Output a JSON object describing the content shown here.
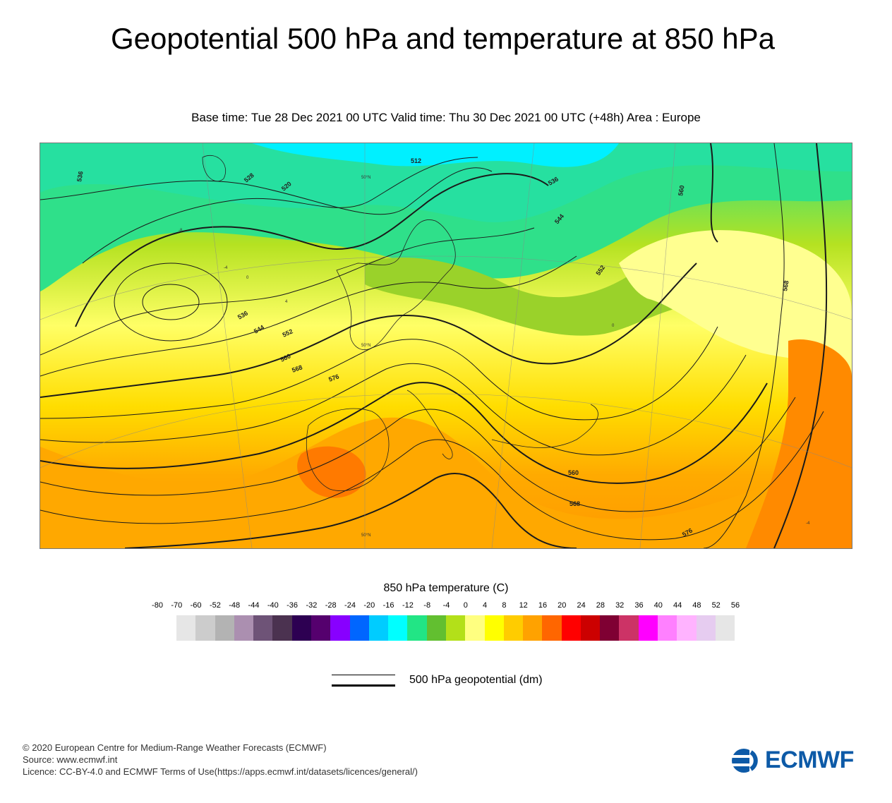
{
  "title": "Geopotential 500 hPa and temperature at 850 hPa",
  "subtitle": "Base time: Tue 28 Dec 2021 00 UTC Valid time: Thu 30 Dec 2021 00 UTC (+48h) Area : Europe",
  "map": {
    "contour_labels": [
      "512",
      "520",
      "528",
      "536",
      "536",
      "536",
      "544",
      "544",
      "552",
      "552",
      "560",
      "560",
      "560",
      "568",
      "568",
      "568",
      "576",
      "576"
    ],
    "small_labels": [
      "50°N",
      "50°N",
      "50°N",
      "0",
      "4",
      "-4",
      "0",
      "-8",
      "-4"
    ]
  },
  "colorbar": {
    "title": "850 hPa temperature (C)",
    "ticks": [
      "-80",
      "-70",
      "-60",
      "-52",
      "-48",
      "-44",
      "-40",
      "-36",
      "-32",
      "-28",
      "-24",
      "-20",
      "-16",
      "-12",
      "-8",
      "-4",
      "0",
      "4",
      "8",
      "12",
      "16",
      "20",
      "24",
      "28",
      "32",
      "36",
      "40",
      "44",
      "48",
      "52",
      "56"
    ],
    "colors": [
      "#e6e6e6",
      "#cccccc",
      "#b3b3b3",
      "#ab8fb0",
      "#6e5377",
      "#4b3250",
      "#2d0052",
      "#55006e",
      "#8800ff",
      "#0066ff",
      "#00ccff",
      "#00ffff",
      "#22e585",
      "#62bf30",
      "#b3e019",
      "#ffff80",
      "#ffff00",
      "#ffcc00",
      "#ffa200",
      "#ff6600",
      "#ff0000",
      "#cc0000",
      "#7f0033",
      "#cc3366",
      "#ff00ff",
      "#ff80ff",
      "#ffb3ff",
      "#e6ccf0",
      "#e6e6e6"
    ]
  },
  "legend": {
    "label": "500 hPa geopotential (dm)"
  },
  "footer": {
    "line1": "© 2020 European Centre for Medium-Range Weather Forecasts (ECMWF)",
    "line2": "Source: www.ecmwf.int",
    "line3": "Licence: CC-BY-4.0 and ECMWF Terms of Use(https://apps.ecmwf.int/datasets/licences/general/)"
  },
  "logo": {
    "text": "ECMWF",
    "color": "#0d5aa7"
  }
}
